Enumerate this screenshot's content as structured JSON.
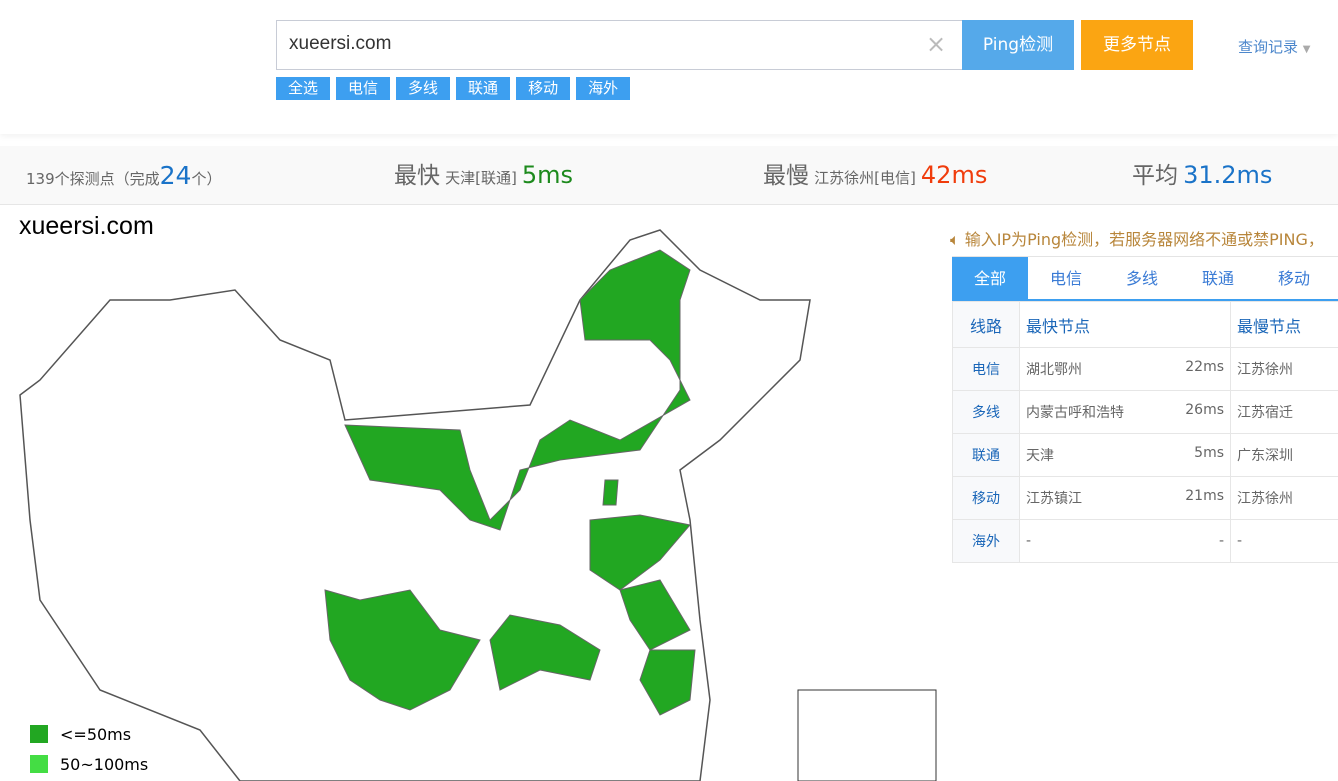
{
  "search": {
    "value": "xueersi.com",
    "ping_label": "Ping检测",
    "more_label": "更多节点",
    "history_label": "查询记录"
  },
  "chips": [
    "全选",
    "电信",
    "多线",
    "联通",
    "移动",
    "海外"
  ],
  "stats": {
    "points": "139个探测点（完成",
    "done": "24",
    "points_suffix": "个）",
    "fast_label": "最快",
    "fast_where": "天津[联通]",
    "fast_value": "5ms",
    "slow_label": "最慢",
    "slow_where": "江苏徐州[电信]",
    "slow_value": "42ms",
    "avg_label": "平均",
    "avg_value": "31.2ms"
  },
  "map": {
    "title": "xueersi.com",
    "fill_fast": "#22a722",
    "fill_mid": "#44dd44",
    "legend": [
      {
        "label": "<=50ms",
        "color": "#22a722"
      },
      {
        "label": "50~100ms",
        "color": "#44dd44"
      }
    ]
  },
  "notice": "输入IP为Ping检测，若服务器网络不通或禁PING，",
  "tabs": [
    "全部",
    "电信",
    "多线",
    "联通",
    "移动"
  ],
  "table": {
    "headers": [
      "线路",
      "最快节点",
      "最慢节点"
    ],
    "rows": [
      {
        "line": "电信",
        "fast": "湖北鄂州",
        "fast_ms": "22ms",
        "slow": "江苏徐州"
      },
      {
        "line": "多线",
        "fast": "内蒙古呼和浩特",
        "fast_ms": "26ms",
        "slow": "江苏宿迁"
      },
      {
        "line": "联通",
        "fast": "天津",
        "fast_ms": "5ms",
        "slow": "广东深圳"
      },
      {
        "line": "移动",
        "fast": "江苏镇江",
        "fast_ms": "21ms",
        "slow": "江苏徐州"
      },
      {
        "line": "海外",
        "fast": "-",
        "fast_ms": "-",
        "slow": "-"
      }
    ]
  }
}
